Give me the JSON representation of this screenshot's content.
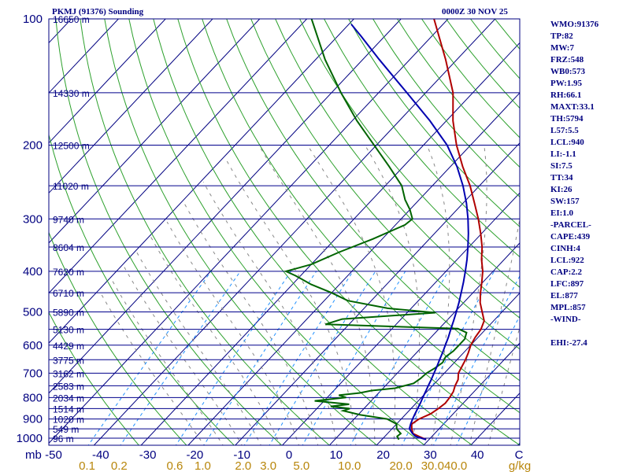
{
  "header": {
    "station": "PKMJ (91376) Sounding",
    "datetime": "0000Z 30 NOV 25"
  },
  "indices": [
    "WMO:91376",
    "TP:82",
    "MW:7",
    "FRZ:548",
    "WB0:573",
    "PW:1.95",
    "RH:66.1",
    "MAXT:33.1",
    "TH:5794",
    "L57:5.5",
    "LCL:940",
    "LI:-1.1",
    "SI:7.5",
    "TT:34",
    "KI:26",
    "SW:157",
    "EI:1.0",
    "-PARCEL-",
    "CAPE:439",
    "CINH:4",
    "LCL:922",
    "CAP:2.2",
    "LFC:897",
    "EL:877",
    "MPL:857",
    "-WIND-",
    "",
    "EHI:-27.4"
  ],
  "colors": {
    "axis": "#000080",
    "isobar": "#00008b",
    "isotherm": "#000080",
    "dry_adiabat": "#2ca02c",
    "moist_adiabat": "#888888",
    "mixing_ratio": "#1e90ff",
    "temperature": "#b00000",
    "dewpoint": "#006400",
    "parcel": "#0000b0",
    "mixing_ratio_labels": "#b8860b"
  },
  "chart_data": {
    "type": "skew-t",
    "title": "PKMJ (91376) Sounding",
    "pressure_axis": {
      "unit_label": "mb",
      "range": [
        1000,
        100
      ],
      "log_scale": true,
      "labels": [
        100,
        200,
        300,
        400,
        500,
        600,
        700,
        800,
        900,
        1000
      ]
    },
    "temperature_axis": {
      "labels": [
        -50,
        -40,
        -30,
        -20,
        -10,
        0,
        10,
        20,
        30,
        40
      ],
      "end_label": "C"
    },
    "mixing_ratio_axis": {
      "labels": [
        "0.1",
        "0.2",
        "0.6",
        "1.0",
        "2.0",
        "3.0",
        "5.0",
        "10.0",
        "20.0",
        "30.0",
        "40.0"
      ],
      "values": [
        0.1,
        0.2,
        0.6,
        1.0,
        2.0,
        3.0,
        5.0,
        10.0,
        20.0,
        30.0,
        40.0
      ],
      "unit": "g/kg"
    },
    "height_labels": [
      {
        "p": 100,
        "text": "16650 m"
      },
      {
        "p": 150,
        "text": "14330 m"
      },
      {
        "p": 200,
        "text": "12500 m"
      },
      {
        "p": 250,
        "text": "11020 m"
      },
      {
        "p": 300,
        "text": "9740 m"
      },
      {
        "p": 350,
        "text": "8604 m"
      },
      {
        "p": 400,
        "text": "7620 m"
      },
      {
        "p": 450,
        "text": "6710 m"
      },
      {
        "p": 500,
        "text": "5890 m"
      },
      {
        "p": 550,
        "text": "5130 m"
      },
      {
        "p": 600,
        "text": "4429 m"
      },
      {
        "p": 650,
        "text": "3775 m"
      },
      {
        "p": 700,
        "text": "3162 m"
      },
      {
        "p": 750,
        "text": "2583 m"
      },
      {
        "p": 800,
        "text": "2034 m"
      },
      {
        "p": 850,
        "text": "1514 m"
      },
      {
        "p": 900,
        "text": "1020 m"
      },
      {
        "p": 950,
        "text": "549 m"
      },
      {
        "p": 1000,
        "text": "96 m"
      }
    ],
    "series": [
      {
        "key": "temperature",
        "points": [
          [
            1008,
            29.4
          ],
          [
            990,
            27.2
          ],
          [
            975,
            25.4
          ],
          [
            950,
            24.2
          ],
          [
            925,
            23.2
          ],
          [
            900,
            23.8
          ],
          [
            875,
            25.2
          ],
          [
            850,
            25.8
          ],
          [
            825,
            26.2
          ],
          [
            800,
            26.0
          ],
          [
            775,
            25.6
          ],
          [
            750,
            24.8
          ],
          [
            725,
            24.2
          ],
          [
            700,
            23.0
          ],
          [
            675,
            22.4
          ],
          [
            650,
            21.8
          ],
          [
            625,
            21.0
          ],
          [
            600,
            20.0
          ],
          [
            575,
            19.4
          ],
          [
            550,
            19.0
          ],
          [
            525,
            18.0
          ],
          [
            500,
            15.8
          ],
          [
            475,
            13.5
          ],
          [
            450,
            11.6
          ],
          [
            425,
            9.8
          ],
          [
            400,
            7.8
          ],
          [
            375,
            5.2
          ],
          [
            350,
            2.8
          ],
          [
            325,
            -0.2
          ],
          [
            300,
            -3.6
          ],
          [
            275,
            -7.6
          ],
          [
            250,
            -12.0
          ],
          [
            225,
            -17.4
          ],
          [
            200,
            -23.0
          ],
          [
            175,
            -28.6
          ],
          [
            150,
            -34.2
          ],
          [
            125,
            -42.4
          ],
          [
            100,
            -53.0
          ]
        ]
      },
      {
        "key": "dewpoint",
        "points": [
          [
            1008,
            23.6
          ],
          [
            990,
            22.6
          ],
          [
            975,
            22.8
          ],
          [
            950,
            21.0
          ],
          [
            925,
            20.0
          ],
          [
            900,
            17.0
          ],
          [
            880,
            10.5
          ],
          [
            860,
            6.0
          ],
          [
            850,
            7.0
          ],
          [
            840,
            2.5
          ],
          [
            830,
            6.0
          ],
          [
            815,
            -2.0
          ],
          [
            800,
            4.0
          ],
          [
            790,
            2.0
          ],
          [
            780,
            6.0
          ],
          [
            770,
            8.0
          ],
          [
            760,
            12.5
          ],
          [
            740,
            15.5
          ],
          [
            720,
            16.0
          ],
          [
            700,
            16.2
          ],
          [
            680,
            17.0
          ],
          [
            660,
            17.5
          ],
          [
            640,
            17.0
          ],
          [
            620,
            17.5
          ],
          [
            600,
            17.5
          ],
          [
            580,
            17.5
          ],
          [
            560,
            16.6
          ],
          [
            548,
            14.0
          ],
          [
            535,
            -15.0
          ],
          [
            520,
            -12.5
          ],
          [
            502,
            6.0
          ],
          [
            490,
            -5.0
          ],
          [
            470,
            -15.0
          ],
          [
            450,
            -20.0
          ],
          [
            430,
            -26.0
          ],
          [
            410,
            -31.0
          ],
          [
            400,
            -34.0
          ],
          [
            385,
            -30.0
          ],
          [
            360,
            -26.5
          ],
          [
            335,
            -22.0
          ],
          [
            310,
            -18.0
          ],
          [
            300,
            -17.6
          ],
          [
            285,
            -20.0
          ],
          [
            270,
            -23.0
          ],
          [
            250,
            -26.5
          ],
          [
            225,
            -33.0
          ],
          [
            200,
            -40.5
          ],
          [
            175,
            -49.0
          ],
          [
            150,
            -58.0
          ],
          [
            125,
            -68.0
          ],
          [
            100,
            -79.0
          ]
        ]
      },
      {
        "key": "parcel",
        "points": [
          [
            1008,
            29.4
          ],
          [
            990,
            26.5
          ],
          [
            975,
            25.3
          ],
          [
            950,
            23.7
          ],
          [
            925,
            23.0
          ],
          [
            900,
            22.4
          ],
          [
            875,
            21.9
          ],
          [
            850,
            21.4
          ],
          [
            825,
            20.9
          ],
          [
            800,
            20.3
          ],
          [
            775,
            19.7
          ],
          [
            750,
            19.1
          ],
          [
            725,
            18.5
          ],
          [
            700,
            17.8
          ],
          [
            675,
            17.1
          ],
          [
            650,
            16.3
          ],
          [
            625,
            15.5
          ],
          [
            600,
            14.6
          ],
          [
            575,
            13.7
          ],
          [
            550,
            12.6
          ],
          [
            525,
            11.5
          ],
          [
            500,
            10.3
          ],
          [
            475,
            9.0
          ],
          [
            450,
            7.5
          ],
          [
            425,
            5.9
          ],
          [
            400,
            4.1
          ],
          [
            375,
            2.1
          ],
          [
            350,
            -0.2
          ],
          [
            325,
            -2.8
          ],
          [
            300,
            -5.8
          ],
          [
            275,
            -9.3
          ],
          [
            250,
            -13.5
          ],
          [
            225,
            -18.6
          ],
          [
            200,
            -25.0
          ],
          [
            175,
            -33.5
          ],
          [
            150,
            -44.0
          ],
          [
            125,
            -56.5
          ],
          [
            110,
            -65.0
          ],
          [
            103,
            -69.5
          ]
        ]
      }
    ]
  }
}
